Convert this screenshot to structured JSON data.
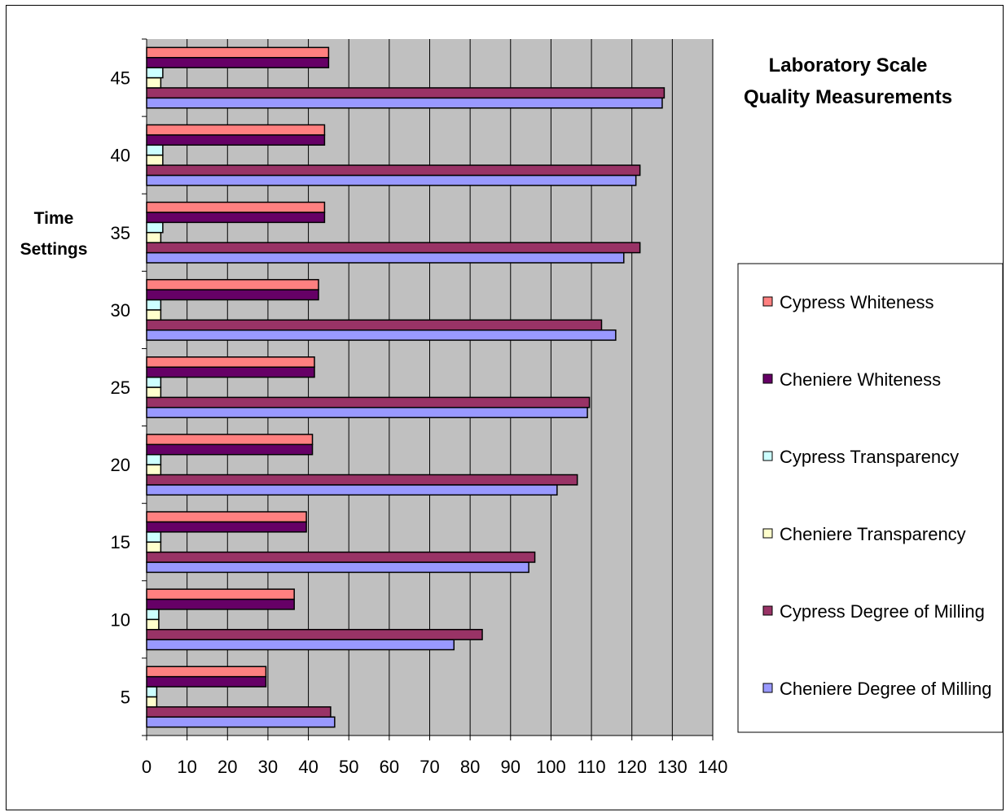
{
  "chart_data": {
    "type": "bar",
    "orientation": "horizontal",
    "title": [
      "Laboratory Scale",
      "Quality Measurements"
    ],
    "ylabel": [
      "Time",
      "Settings"
    ],
    "xlabel": "",
    "xlim": [
      0,
      140
    ],
    "xticks": [
      0,
      10,
      20,
      30,
      40,
      50,
      60,
      70,
      80,
      90,
      100,
      110,
      120,
      130,
      140
    ],
    "categories": [
      "5",
      "10",
      "15",
      "20",
      "25",
      "30",
      "35",
      "40",
      "45"
    ],
    "grid": true,
    "legend_position": "right",
    "plot_background": "#c0c0c0",
    "series": [
      {
        "name": "Cheniere Degree of Milling",
        "color": "#9999ff",
        "values": [
          46.5,
          76,
          94.5,
          101.5,
          109,
          116,
          118,
          121,
          127.5
        ]
      },
      {
        "name": "Cypress Degree of Milling",
        "color": "#993366",
        "values": [
          45.5,
          83,
          96,
          106.5,
          109.5,
          112.5,
          122,
          122,
          128
        ]
      },
      {
        "name": "Cheniere Transparency",
        "color": "#ffffcc",
        "values": [
          2.5,
          3,
          3.5,
          3.5,
          3.5,
          3.5,
          3.5,
          4,
          3.5
        ]
      },
      {
        "name": "Cypress Transparency",
        "color": "#ccffff",
        "values": [
          2.5,
          3,
          3.5,
          3.5,
          3.5,
          3.5,
          4,
          4,
          4
        ]
      },
      {
        "name": "Cheniere Whiteness",
        "color": "#660066",
        "values": [
          29.5,
          36.5,
          39.5,
          41,
          41.5,
          42.5,
          44,
          44,
          45
        ]
      },
      {
        "name": "Cypress Whiteness",
        "color": "#ff8080",
        "values": [
          29.5,
          36.5,
          39.5,
          41,
          41.5,
          42.5,
          44,
          44,
          45
        ]
      }
    ],
    "legend_order": [
      "Cypress Whiteness",
      "Cheniere Whiteness",
      "Cypress Transparency",
      "Cheniere Transparency",
      "Cypress Degree of Milling",
      "Cheniere Degree of Milling"
    ]
  }
}
